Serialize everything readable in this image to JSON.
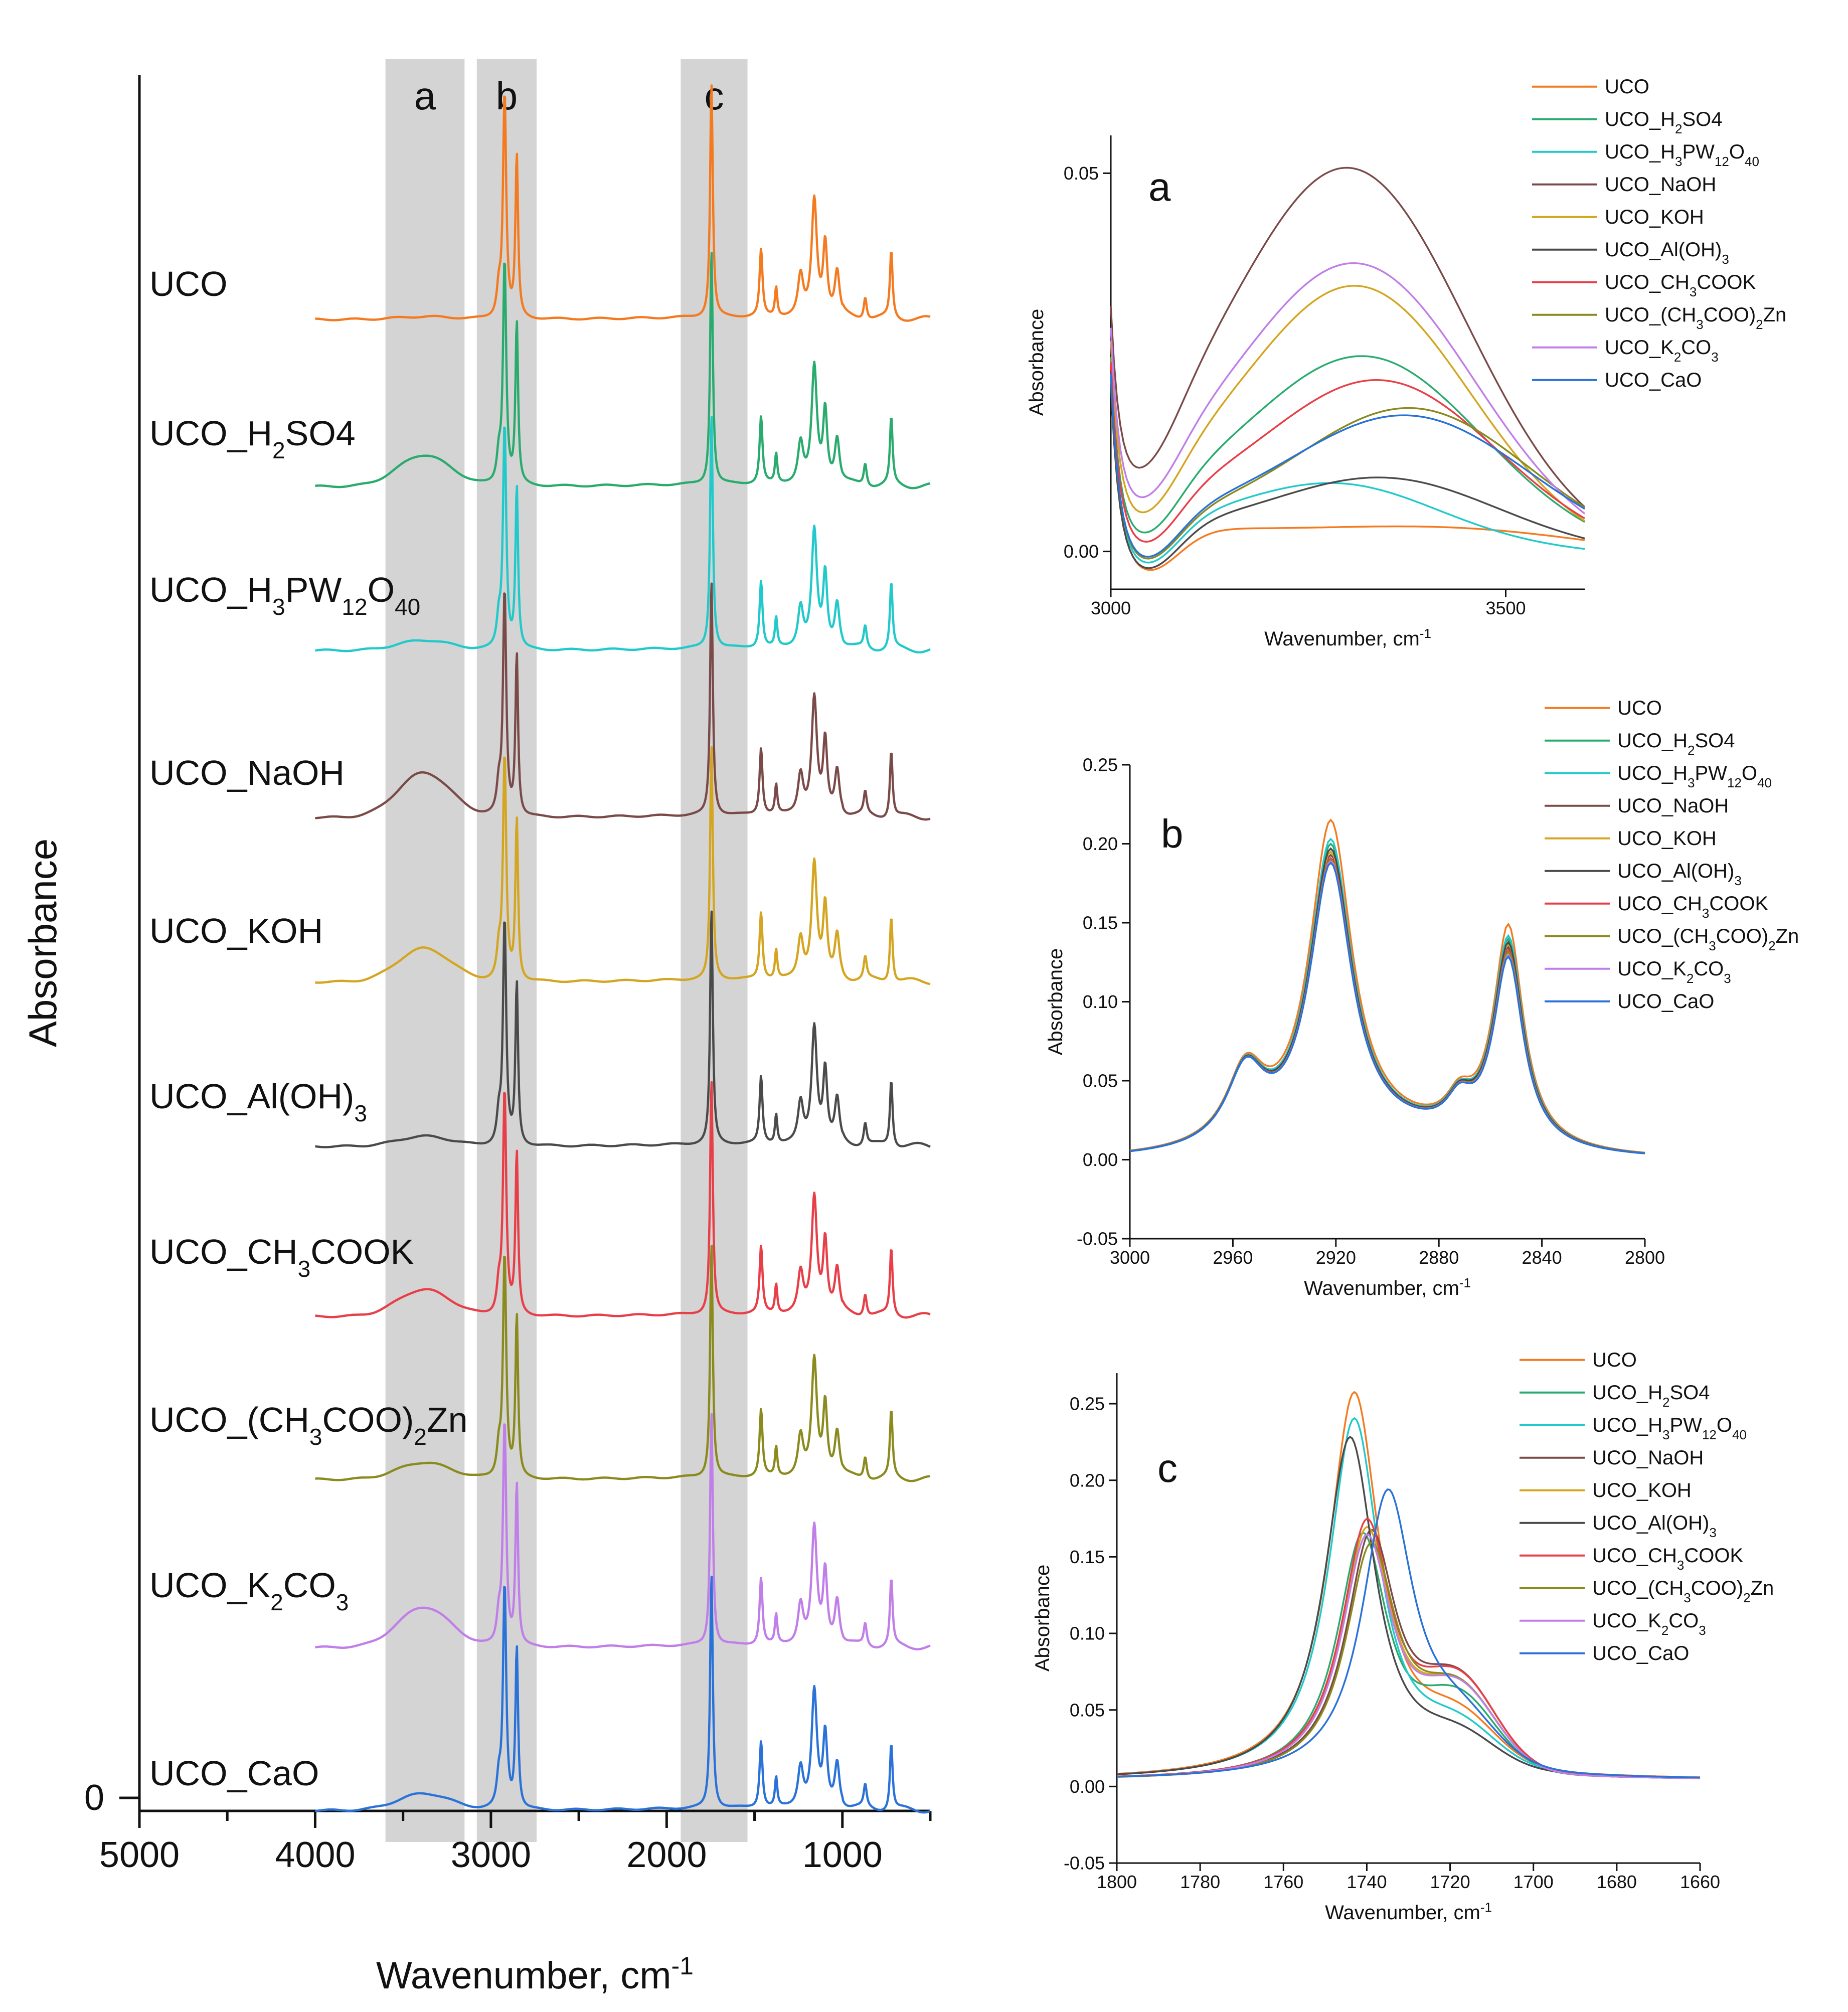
{
  "figure": {
    "series_colors": [
      "#f47a20",
      "#2aab6e",
      "#22c9cb",
      "#7a4a48",
      "#d4a520",
      "#4a4a4a",
      "#e83e48",
      "#8a8a1e",
      "#c07ee8",
      "#2a72d8"
    ]
  },
  "chart_data": [
    {
      "id": "main",
      "type": "line",
      "title": "",
      "xlabel": "Wavenumber, cm",
      "xlabel_sup": "-1",
      "ylabel": "Absorbance",
      "xlim": [
        5000,
        500
      ],
      "xticks": [
        "5000",
        "4000",
        "3000",
        "2000",
        "1000"
      ],
      "ytick_label": "0",
      "bands": [
        {
          "label": "a",
          "range": [
            3600,
            3150
          ]
        },
        {
          "label": "b",
          "range": [
            3080,
            2740
          ]
        },
        {
          "label": "c",
          "range": [
            1920,
            1540
          ]
        }
      ],
      "series": [
        {
          "name": "UCO",
          "parts": [
            {
              "t": "UCO"
            }
          ]
        },
        {
          "name": "UCO_H2SO4",
          "parts": [
            {
              "t": "UCO_H"
            },
            {
              "t": "2",
              "s": "sub"
            },
            {
              "t": "SO4"
            }
          ]
        },
        {
          "name": "UCO_H3PW12O40",
          "parts": [
            {
              "t": "UCO_H"
            },
            {
              "t": "3",
              "s": "sub"
            },
            {
              "t": "PW"
            },
            {
              "t": "12",
              "s": "sub"
            },
            {
              "t": "O"
            },
            {
              "t": "40",
              "s": "sub"
            }
          ]
        },
        {
          "name": "UCO_NaOH",
          "parts": [
            {
              "t": "UCO_NaOH"
            }
          ]
        },
        {
          "name": "UCO_KOH",
          "parts": [
            {
              "t": "UCO_KOH"
            }
          ]
        },
        {
          "name": "UCO_Al(OH)3",
          "parts": [
            {
              "t": "UCO_Al(OH)"
            },
            {
              "t": "3",
              "s": "sub"
            }
          ]
        },
        {
          "name": "UCO_CH3COOK",
          "parts": [
            {
              "t": "UCO_CH"
            },
            {
              "t": "3",
              "s": "sub"
            },
            {
              "t": "COOK"
            }
          ]
        },
        {
          "name": "UCO_(CH3COO)2Zn",
          "parts": [
            {
              "t": "UCO_(CH"
            },
            {
              "t": "3",
              "s": "sub"
            },
            {
              "t": "COO)"
            },
            {
              "t": "2",
              "s": "sub"
            },
            {
              "t": "Zn"
            }
          ]
        },
        {
          "name": "UCO_K2CO3",
          "parts": [
            {
              "t": "UCO_K"
            },
            {
              "t": "2",
              "s": "sub"
            },
            {
              "t": "CO"
            },
            {
              "t": "3",
              "s": "sub"
            }
          ]
        },
        {
          "name": "UCO_CaO",
          "parts": [
            {
              "t": "UCO_CaO"
            }
          ]
        }
      ],
      "oh_band_heights": [
        0.012,
        0.14,
        0.045,
        0.2,
        0.15,
        0.045,
        0.12,
        0.075,
        0.18,
        0.075
      ],
      "peaks": [
        {
          "center": 2955,
          "width": 14,
          "height": 0.12
        },
        {
          "center": 2922,
          "width": 11,
          "height": 1.0
        },
        {
          "center": 2853,
          "width": 9,
          "height": 0.72
        },
        {
          "center": 1745,
          "width": 9,
          "height": 1.05
        },
        {
          "center": 1463,
          "width": 10,
          "height": 0.3
        },
        {
          "center": 1377,
          "width": 8,
          "height": 0.13
        },
        {
          "center": 1238,
          "width": 18,
          "height": 0.18
        },
        {
          "center": 1160,
          "width": 18,
          "height": 0.52
        },
        {
          "center": 1098,
          "width": 14,
          "height": 0.32
        },
        {
          "center": 1030,
          "width": 16,
          "height": 0.2
        },
        {
          "center": 870,
          "width": 10,
          "height": 0.1
        },
        {
          "center": 722,
          "width": 9,
          "height": 0.3
        }
      ]
    },
    {
      "id": "a",
      "type": "line",
      "panel_label": "a",
      "xlabel": "Wavenumber, cm",
      "xlabel_sup": "-1",
      "ylabel": "Absorbance",
      "xlim": [
        3000,
        3600
      ],
      "ylim": [
        -0.005,
        0.055
      ],
      "xticks": [
        3000,
        3500
      ],
      "xtick_labels": [
        "3000",
        "3500"
      ],
      "yticks": [
        0.0,
        0.05
      ],
      "ytick_labels": [
        "0.00",
        "0.05"
      ],
      "legend": [
        "UCO",
        "UCO_H2SO4",
        "UCO_H3PW12O40",
        "UCO_NaOH",
        "UCO_KOH",
        "UCO_Al(OH)3",
        "UCO_CH3COOK",
        "UCO_(CH3COO)2Zn",
        "UCO_K2CO3",
        "UCO_CaO"
      ],
      "series_params": [
        {
          "peak": 0.0022,
          "center": 3450,
          "width": 170,
          "base": 0.0035
        },
        {
          "peak": 0.0235,
          "center": 3325,
          "width": 145,
          "base": 0.005
        },
        {
          "peak": 0.0072,
          "center": 3290,
          "width": 125,
          "base": 0.0035
        },
        {
          "peak": 0.0465,
          "center": 3305,
          "width": 145,
          "base": 0.0085
        },
        {
          "peak": 0.032,
          "center": 3315,
          "width": 140,
          "base": 0.0065
        },
        {
          "peak": 0.0085,
          "center": 3350,
          "width": 140,
          "base": 0.003
        },
        {
          "peak": 0.0205,
          "center": 3345,
          "width": 145,
          "base": 0.005
        },
        {
          "peak": 0.0175,
          "center": 3385,
          "width": 145,
          "base": 0.004
        },
        {
          "peak": 0.0345,
          "center": 3315,
          "width": 145,
          "base": 0.0075
        },
        {
          "peak": 0.0165,
          "center": 3380,
          "width": 150,
          "base": 0.004
        }
      ]
    },
    {
      "id": "b",
      "type": "line",
      "panel_label": "b",
      "xlabel": "Wavenumber, cm",
      "xlabel_sup": "-1",
      "ylabel": "Absorbance",
      "xlim": [
        3000,
        2800
      ],
      "ylim": [
        -0.05,
        0.25
      ],
      "xticks": [
        3000,
        2960,
        2920,
        2880,
        2840,
        2800
      ],
      "xtick_labels": [
        "3000",
        "2960",
        "2920",
        "2880",
        "2840",
        "2800"
      ],
      "yticks": [
        -0.05,
        0.0,
        0.05,
        0.1,
        0.15,
        0.2,
        0.25
      ],
      "ytick_labels": [
        "-0.05",
        "0.00",
        "0.05",
        "0.10",
        "0.15",
        "0.20",
        "0.25"
      ],
      "legend": [
        "UCO",
        "UCO_H2SO4",
        "UCO_H3PW12O40",
        "UCO_NaOH",
        "UCO_KOH",
        "UCO_Al(OH)3",
        "UCO_CH3COOK",
        "UCO_(CH3COO)2Zn",
        "UCO_K2CO3",
        "UCO_CaO"
      ],
      "peak_2922": [
        0.22,
        0.205,
        0.208,
        0.198,
        0.2,
        0.202,
        0.196,
        0.195,
        0.194,
        0.193
      ],
      "peak_2853": [
        0.157,
        0.148,
        0.15,
        0.143,
        0.145,
        0.146,
        0.141,
        0.14,
        0.138,
        0.137
      ]
    },
    {
      "id": "c",
      "type": "line",
      "panel_label": "c",
      "xlabel": "Wavenumber, cm",
      "xlabel_sup": "-1",
      "ylabel": "Absorbance",
      "xlim": [
        1800,
        1660
      ],
      "ylim": [
        -0.05,
        0.27
      ],
      "xticks": [
        1800,
        1780,
        1760,
        1740,
        1720,
        1700,
        1680,
        1660
      ],
      "xtick_labels": [
        "1800",
        "1780",
        "1760",
        "1740",
        "1720",
        "1700",
        "1680",
        "1660"
      ],
      "yticks": [
        -0.05,
        0.0,
        0.05,
        0.1,
        0.15,
        0.2,
        0.25
      ],
      "ytick_labels": [
        "-0.05",
        "0.00",
        "0.05",
        "0.10",
        "0.15",
        "0.20",
        "0.25"
      ],
      "legend": [
        "UCO",
        "UCO_H2SO4",
        "UCO_H3PW12O40",
        "UCO_NaOH",
        "UCO_KOH",
        "UCO_Al(OH)3",
        "UCO_CH3COOK",
        "UCO_(CH3COO)2Zn",
        "UCO_K2CO3",
        "UCO_CaO"
      ],
      "series_params": [
        {
          "peak": 0.253,
          "center": 1743,
          "shoulder": 0.03
        },
        {
          "peak": 0.16,
          "center": 1741,
          "shoulder": 0.045
        },
        {
          "peak": 0.236,
          "center": 1743,
          "shoulder": 0.025
        },
        {
          "peak": 0.16,
          "center": 1739,
          "shoulder": 0.055
        },
        {
          "peak": 0.163,
          "center": 1740,
          "shoulder": 0.05
        },
        {
          "peak": 0.224,
          "center": 1744,
          "shoulder": 0.02
        },
        {
          "peak": 0.168,
          "center": 1740,
          "shoulder": 0.055
        },
        {
          "peak": 0.152,
          "center": 1739,
          "shoulder": 0.05
        },
        {
          "peak": 0.158,
          "center": 1740,
          "shoulder": 0.05
        },
        {
          "peak": 0.185,
          "center": 1735,
          "shoulder": 0.03
        }
      ]
    }
  ]
}
